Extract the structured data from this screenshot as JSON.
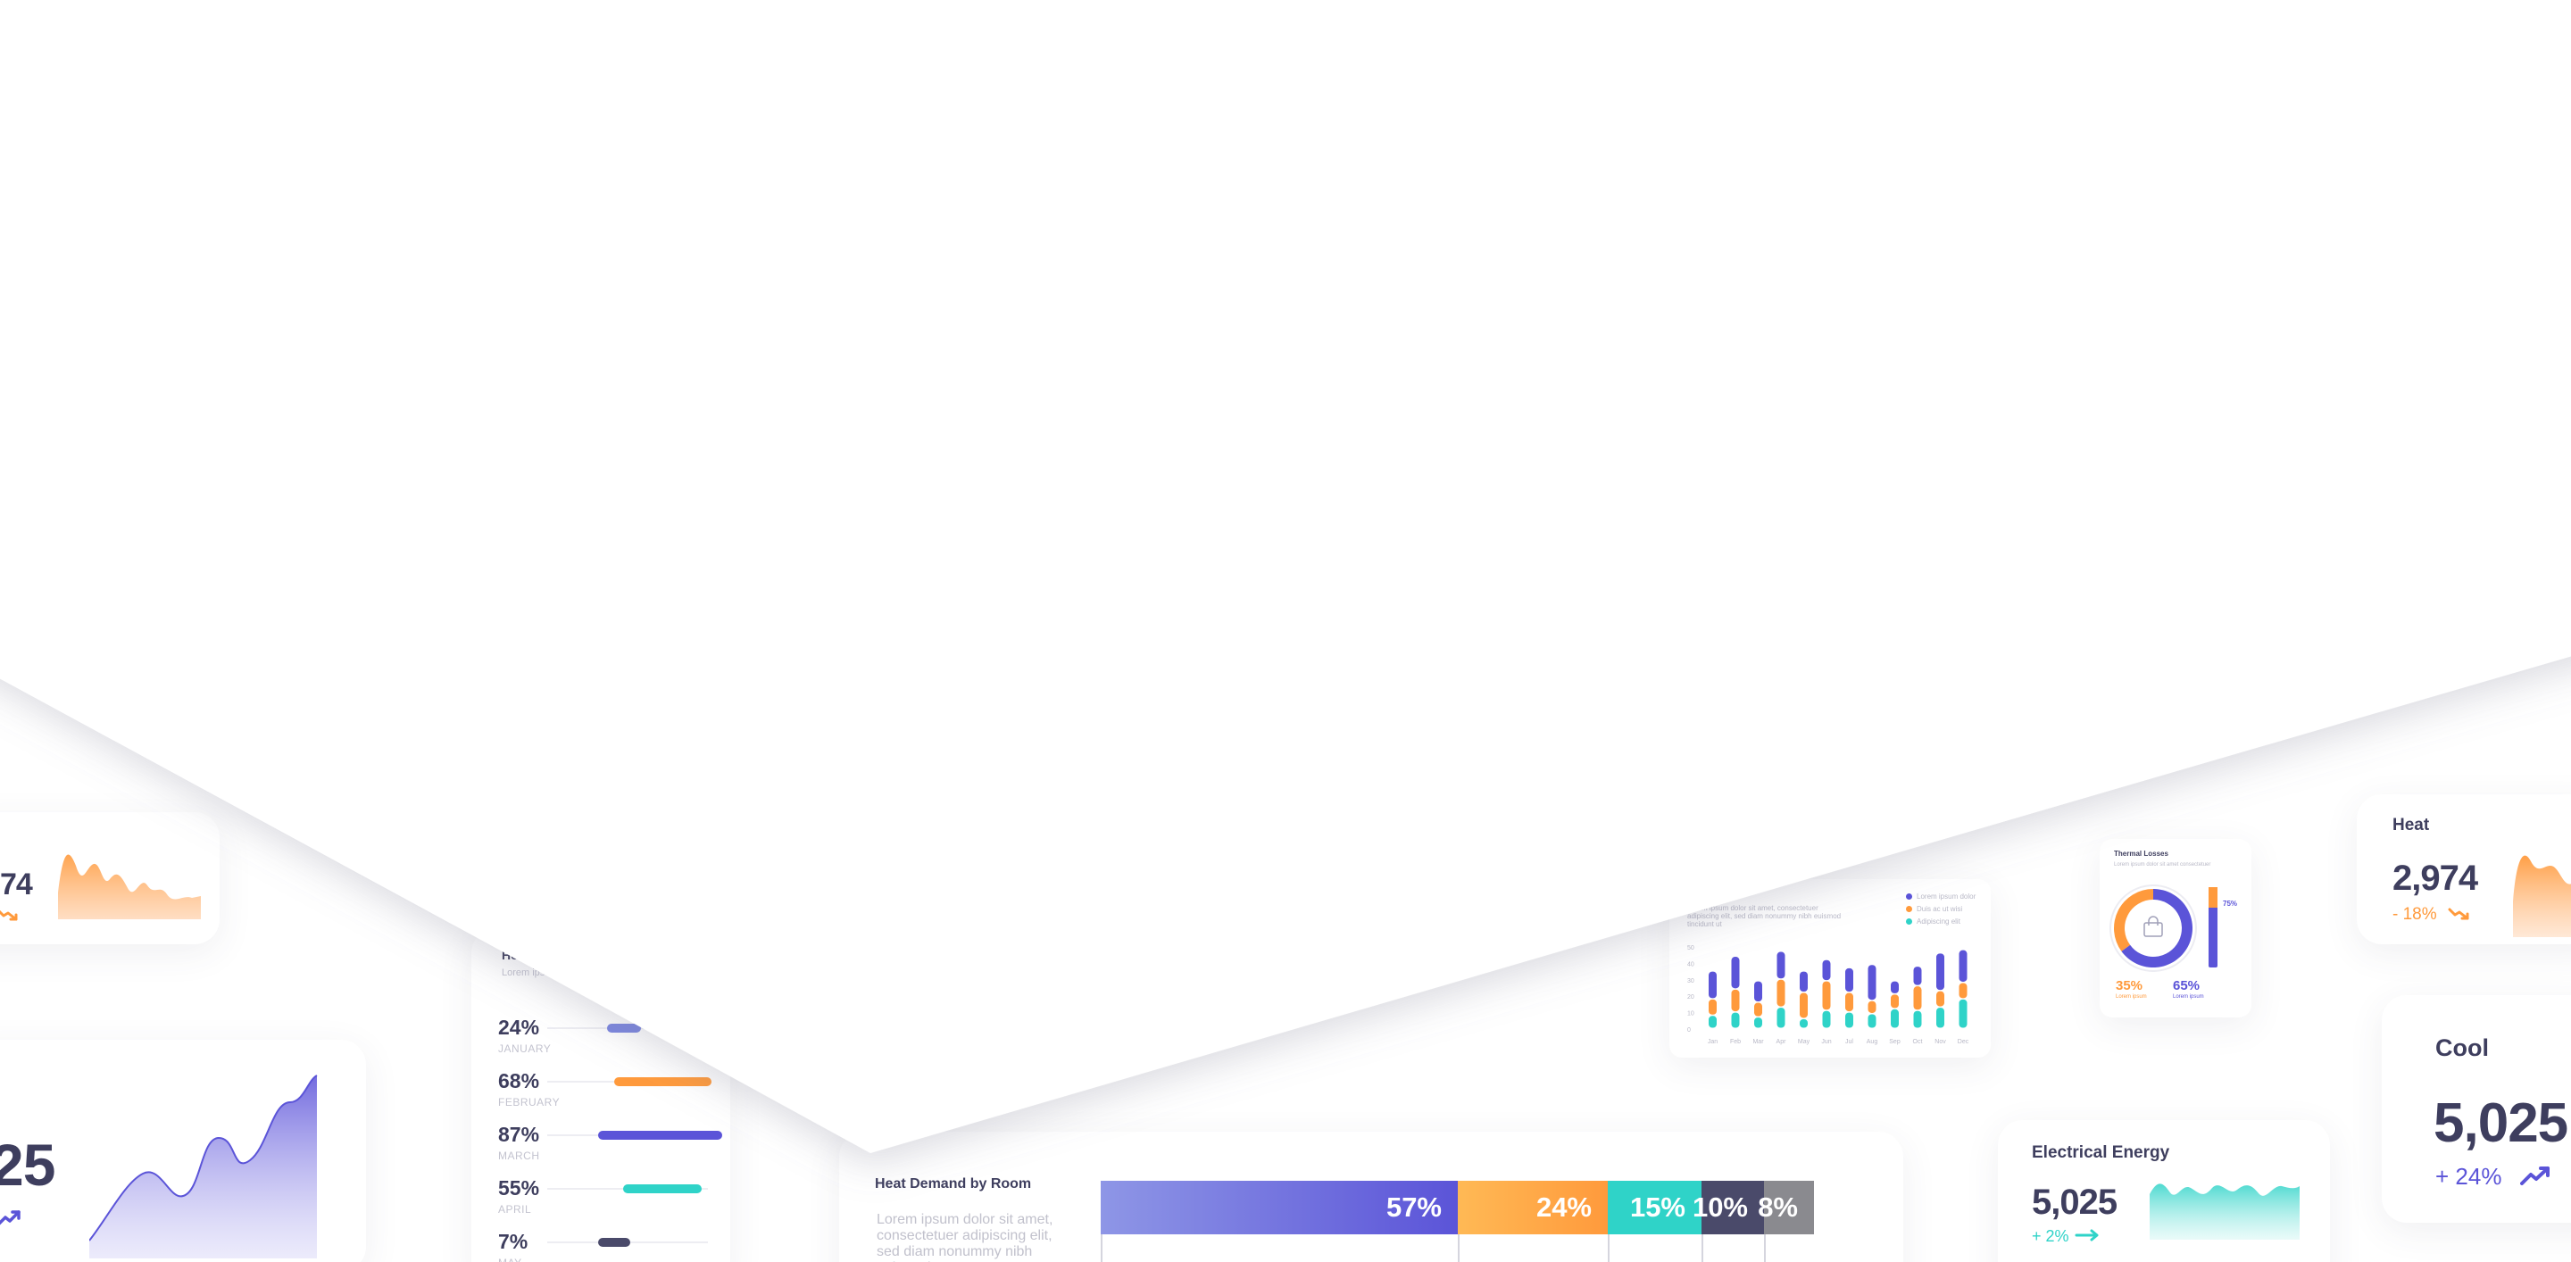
{
  "colors": {
    "purple": "#5b54d8",
    "orange": "#ff9a3c",
    "teal": "#2fd3c8",
    "navy": "#4a4a6a",
    "gray": "#8a8a8f",
    "text": "#3e3e5e"
  },
  "left_top_card": {
    "value": "74",
    "trend_icon": "trend-down-icon"
  },
  "left_mid_card": {
    "value": "25",
    "trend_icon": "trend-up-icon"
  },
  "monthly_card": {
    "title": "Ho",
    "subtitle": "Lorem ipsu",
    "rows": [
      {
        "pct": "24%",
        "month": "JANUARY",
        "value": 0.24,
        "color": "#7b86e0"
      },
      {
        "pct": "68%",
        "month": "FEBRUARY",
        "value": 0.68,
        "color": "#ff9a3c"
      },
      {
        "pct": "87%",
        "month": "MARCH",
        "value": 0.87,
        "color": "#5b54d8"
      },
      {
        "pct": "55%",
        "month": "APRIL",
        "value": 0.55,
        "color": "#2fd3c8"
      },
      {
        "pct": "7%",
        "month": "MAY",
        "value": 0.07,
        "color": "#4a4a6a"
      }
    ]
  },
  "heat_demand": {
    "title": "Heat Demand by Room",
    "body": "Lorem ipsum dolor sit amet, consectetuer adipiscing elit, sed diam nonummy nibh euismod",
    "segments": [
      {
        "label": "57%",
        "value": 57,
        "color": "#5b54d8"
      },
      {
        "label": "24%",
        "value": 24,
        "color": "#ff9a3c"
      },
      {
        "label": "15%",
        "value": 15,
        "color": "#2fd3c8"
      },
      {
        "label": "10%",
        "value": 10,
        "color": "#4a4a6a"
      },
      {
        "label": "8%",
        "value": 8,
        "color": "#8a8a8f"
      }
    ]
  },
  "stacked_chart_card": {
    "text_line1": "Lorem ipsum dolor sit amet, consectetuer",
    "text_line2": "adipiscing elit, sed diam nonummy nibh euismod tincidunt ut",
    "legend": [
      "Lorem ipsum dolor",
      "Duis ac ut wisi",
      "Adipiscing elit"
    ],
    "y_ticks": [
      "50",
      "40",
      "30",
      "20",
      "10",
      "0"
    ],
    "months": [
      "Jan",
      "Feb",
      "Mar",
      "Apr",
      "May",
      "Jun",
      "Jul",
      "Aug",
      "Sep",
      "Oct",
      "Nov",
      "Dec"
    ]
  },
  "chart_data": {
    "type": "bar",
    "stacked": true,
    "categories": [
      "Jan",
      "Feb",
      "Mar",
      "Apr",
      "May",
      "Jun",
      "Jul",
      "Aug",
      "Sep",
      "Oct",
      "Nov",
      "Dec"
    ],
    "series": [
      {
        "name": "Adipiscing elit",
        "color": "#2fd3c8",
        "values": [
          8,
          10,
          7,
          13,
          6,
          11,
          10,
          9,
          12,
          11,
          13,
          18
        ]
      },
      {
        "name": "Duis ac ut wisi",
        "color": "#ff9a3c",
        "values": [
          10,
          14,
          9,
          17,
          16,
          18,
          12,
          8,
          9,
          15,
          10,
          10
        ]
      },
      {
        "name": "Lorem ipsum dolor",
        "color": "#5b54d8",
        "values": [
          17,
          20,
          13,
          17,
          13,
          13,
          15,
          22,
          8,
          12,
          23,
          20
        ]
      }
    ],
    "ylim": [
      0,
      50
    ],
    "grid": false,
    "legend_position": "top-right"
  },
  "thermal_losses": {
    "title": "Thermal Losses",
    "subtitle": "Lorem ipsum dolor sit amet consectetuer",
    "donut": [
      {
        "label": "35%",
        "caption": "Lorem ipsum",
        "value": 35,
        "color": "#ff9a3c"
      },
      {
        "label": "65%",
        "caption": "Lorem ipsum",
        "value": 65,
        "color": "#5b54d8"
      }
    ],
    "side_bar_label": "75%",
    "side_bar_value": 0.75,
    "center_icon": "shopping-bag-icon"
  },
  "heat_card": {
    "title": "Heat",
    "value": "2,974",
    "delta": "- 18%",
    "trend_icon": "trend-down-icon"
  },
  "cool_card": {
    "title": "Cool",
    "value": "5,025",
    "delta": "+ 24%",
    "trend_icon": "trend-up-icon"
  },
  "electrical_card": {
    "title": "Electrical Energy",
    "value": "5,025",
    "delta": "+ 2%",
    "trend_icon": "trend-flat-icon"
  }
}
